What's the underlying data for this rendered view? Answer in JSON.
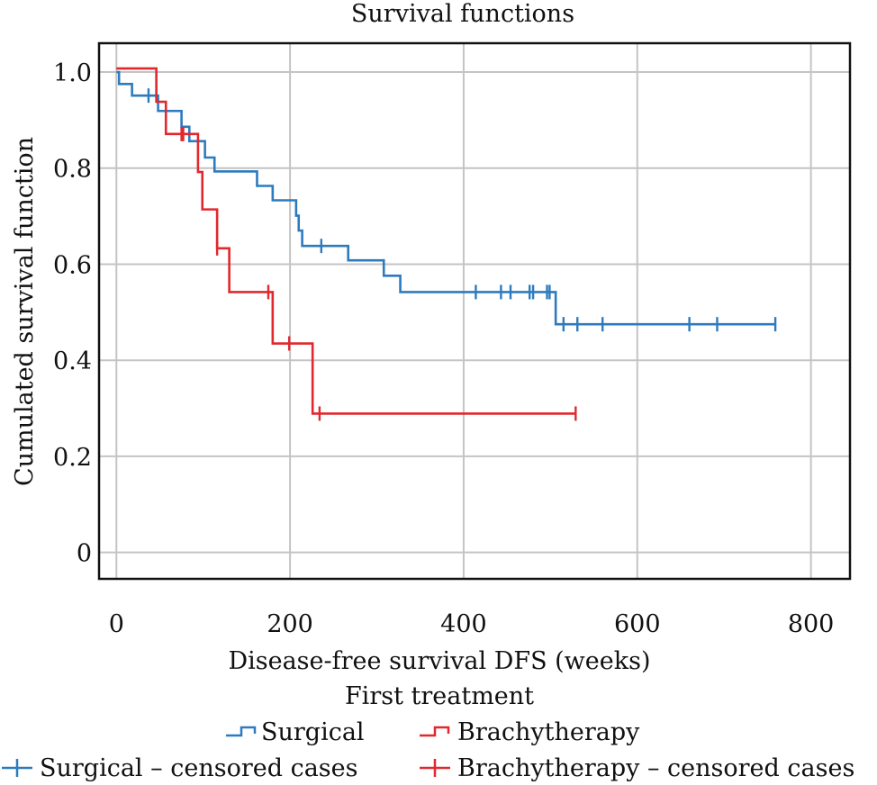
{
  "chart_data": {
    "type": "line",
    "subtype": "kaplan-meier-step",
    "title": "Survival functions",
    "xlabel": "Disease-free survival DFS (weeks)",
    "ylabel": "Cumulated survival function",
    "xlim": [
      -20,
      845
    ],
    "ylim": [
      -0.055,
      1.06
    ],
    "xticks": [
      0,
      200,
      400,
      600,
      800
    ],
    "xtick_labels": [
      "0",
      "200",
      "400",
      "600",
      "800"
    ],
    "yticks": [
      0,
      0.2,
      0.4,
      0.6,
      0.8,
      1.0
    ],
    "ytick_labels": [
      "0",
      "0.2",
      "0.4",
      "0.6",
      "0.8",
      "1.0"
    ],
    "grid": true,
    "legend": {
      "title": "First treatment",
      "placement": "bottom-center",
      "entries": [
        {
          "label": "Surgical",
          "marker": "step",
          "color": "#2d7bbf"
        },
        {
          "label": "Brachytherapy",
          "marker": "step",
          "color": "#e0282e"
        },
        {
          "label": "Surgical – censored cases",
          "marker": "plus",
          "color": "#2d7bbf"
        },
        {
          "label": "Brachytherapy – censored cases",
          "marker": "plus",
          "color": "#e0282e"
        }
      ]
    },
    "series": [
      {
        "name": "Surgical",
        "color": "#2d7bbf",
        "steps": [
          {
            "t": 0,
            "s": 1.0
          },
          {
            "t": 3,
            "s": 0.975
          },
          {
            "t": 18,
            "s": 0.951
          },
          {
            "t": 48,
            "s": 0.919
          },
          {
            "t": 75,
            "s": 0.886
          },
          {
            "t": 84,
            "s": 0.856
          },
          {
            "t": 102,
            "s": 0.822
          },
          {
            "t": 113,
            "s": 0.793
          },
          {
            "t": 162,
            "s": 0.763
          },
          {
            "t": 180,
            "s": 0.733
          },
          {
            "t": 207,
            "s": 0.701
          },
          {
            "t": 210,
            "s": 0.67
          },
          {
            "t": 214,
            "s": 0.638
          },
          {
            "t": 267,
            "s": 0.608
          },
          {
            "t": 308,
            "s": 0.576
          },
          {
            "t": 327,
            "s": 0.542
          },
          {
            "t": 506,
            "s": 0.475
          }
        ],
        "end_t": 760,
        "censored": [
          37,
          236,
          414,
          443,
          454,
          476,
          480,
          496,
          499,
          515,
          531,
          560,
          660,
          692,
          759
        ]
      },
      {
        "name": "Brachytherapy",
        "color": "#e0282e",
        "steps": [
          {
            "t": 0,
            "s": 1.0
          },
          {
            "t": 46,
            "s": 0.938
          },
          {
            "t": 57,
            "s": 0.871
          },
          {
            "t": 94,
            "s": 0.792
          },
          {
            "t": 99,
            "s": 0.714
          },
          {
            "t": 116,
            "s": 0.633
          },
          {
            "t": 130,
            "s": 0.542
          },
          {
            "t": 180,
            "s": 0.435
          },
          {
            "t": 226,
            "s": 0.289
          }
        ],
        "end_t": 530,
        "censored": [
          75,
          77,
          116,
          175,
          199,
          234,
          529
        ]
      }
    ]
  }
}
